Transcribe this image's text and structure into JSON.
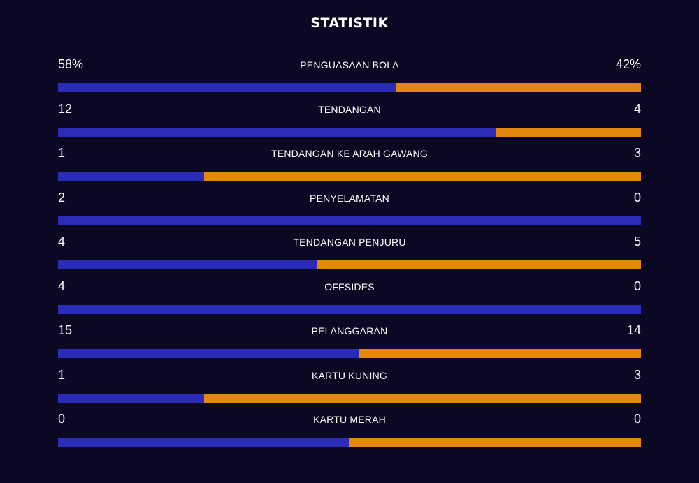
{
  "title": "STATISTIK",
  "colors": {
    "background": "#0a0822",
    "home": "#2a2cb8",
    "away": "#e3870f"
  },
  "stats": [
    {
      "label": "PENGUASAAN BOLA",
      "home": "58%",
      "away": "42%",
      "home_share": 0.58
    },
    {
      "label": "TENDANGAN",
      "home": "12",
      "away": "4",
      "home_share": 0.75
    },
    {
      "label": "TENDANGAN KE ARAH GAWANG",
      "home": "1",
      "away": "3",
      "home_share": 0.25
    },
    {
      "label": "PENYELAMATAN",
      "home": "2",
      "away": "0",
      "home_share": 1.0
    },
    {
      "label": "TENDANGAN PENJURU",
      "home": "4",
      "away": "5",
      "home_share": 0.444
    },
    {
      "label": "OFFSIDES",
      "home": "4",
      "away": "0",
      "home_share": 1.0
    },
    {
      "label": "PELANGGARAN",
      "home": "15",
      "away": "14",
      "home_share": 0.517
    },
    {
      "label": "KARTU KUNING",
      "home": "1",
      "away": "3",
      "home_share": 0.25
    },
    {
      "label": "KARTU MERAH",
      "home": "0",
      "away": "0",
      "home_share": 0.5
    }
  ]
}
